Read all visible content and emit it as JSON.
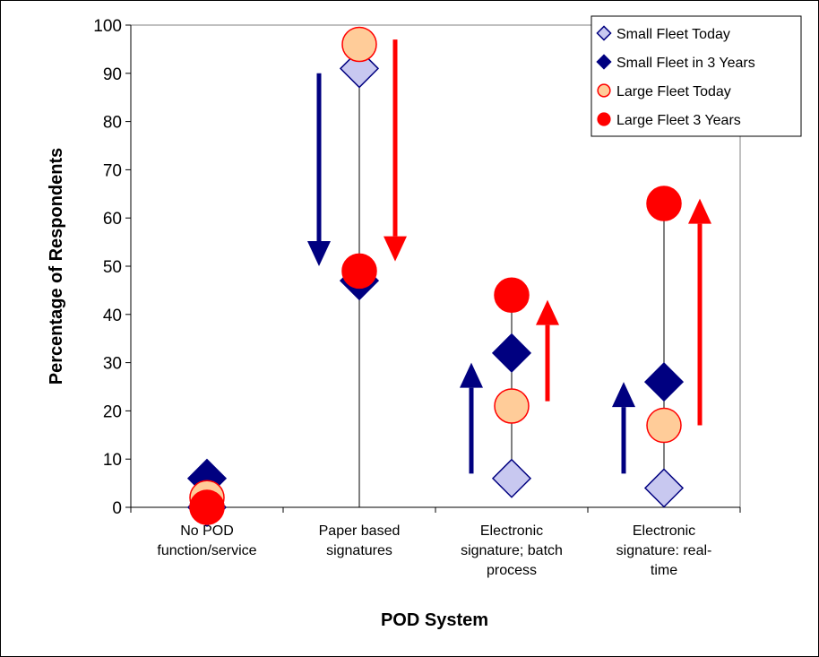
{
  "chart_data": {
    "type": "scatter",
    "title": "",
    "xlabel": "POD System",
    "ylabel": "Percentage of Respondents",
    "ylim": [
      0,
      100
    ],
    "yticks": [
      0,
      10,
      20,
      30,
      40,
      50,
      60,
      70,
      80,
      90,
      100
    ],
    "grid": false,
    "legend_position": "top-right",
    "categories": [
      [
        "No POD",
        "function/service"
      ],
      [
        "Paper based",
        "signatures"
      ],
      [
        "Electronic",
        "signature; batch",
        "process"
      ],
      [
        "Electronic",
        "signature: real-",
        "time"
      ]
    ],
    "series": [
      {
        "name": "Small Fleet Today",
        "values": [
          0,
          91,
          6,
          4
        ],
        "marker": "diamond-open",
        "color": "#c8c8f0",
        "stroke": "#000080"
      },
      {
        "name": "Small Fleet in 3 Years",
        "values": [
          6,
          47,
          32,
          26
        ],
        "marker": "diamond",
        "color": "#000080",
        "stroke": "#000080"
      },
      {
        "name": "Large Fleet Today",
        "values": [
          2,
          96,
          21,
          17
        ],
        "marker": "circle-open",
        "color": "#ffcc99",
        "stroke": "#ff0000"
      },
      {
        "name": "Large Fleet 3 Years",
        "values": [
          0,
          49,
          44,
          63
        ],
        "marker": "circle",
        "color": "#ff0000",
        "stroke": "#ff0000"
      }
    ],
    "range_lines": [
      {
        "category": 1,
        "from": 0,
        "to": 96
      },
      {
        "category": 2,
        "from": 6,
        "to": 44
      },
      {
        "category": 3,
        "from": 4,
        "to": 63
      }
    ],
    "arrows": [
      {
        "color": "#000080",
        "from": 90,
        "to": 50,
        "category": 1,
        "side": "left"
      },
      {
        "color": "#ff0000",
        "from": 97,
        "to": 51,
        "category": 1,
        "side": "right"
      },
      {
        "color": "#000080",
        "from": 7,
        "to": 30,
        "category": 2,
        "side": "left"
      },
      {
        "color": "#ff0000",
        "from": 22,
        "to": 43,
        "category": 2,
        "side": "right"
      },
      {
        "color": "#000080",
        "from": 7,
        "to": 26,
        "category": 3,
        "side": "left"
      },
      {
        "color": "#ff0000",
        "from": 17,
        "to": 64,
        "category": 3,
        "side": "right"
      }
    ]
  }
}
